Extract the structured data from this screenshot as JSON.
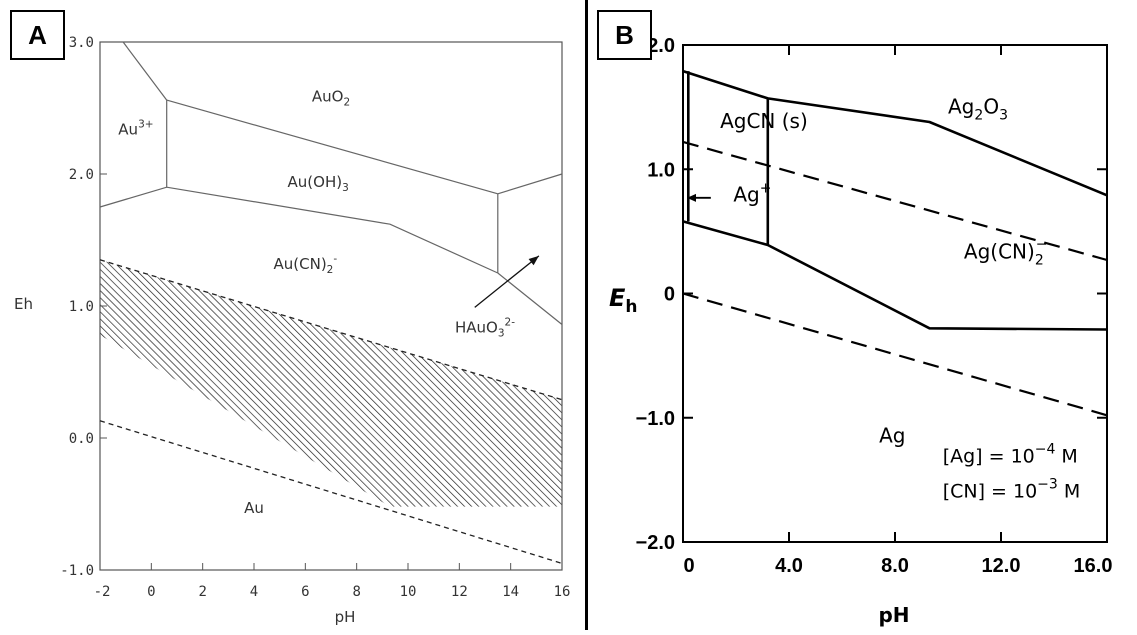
{
  "panels": {
    "a_label": "A",
    "b_label": "B"
  },
  "chart_data": [
    {
      "type": "line",
      "panel": "A",
      "xlabel": "pH",
      "ylabel": "Eh",
      "xlim": [
        -2,
        16
      ],
      "ylim": [
        -1.0,
        3.0
      ],
      "x_ticks": [
        "-2",
        "0",
        "2",
        "4",
        "6",
        "8",
        "10",
        "12",
        "14",
        "16"
      ],
      "y_ticks": [
        "-1.0",
        "0.0",
        "1.0",
        "2.0",
        "3.0"
      ],
      "grid": false,
      "regions": [
        {
          "name": "AuO2",
          "label_main": "AuO",
          "label_sub": "2"
        },
        {
          "name": "Au3+",
          "label_main": "Au",
          "label_sup": "3+"
        },
        {
          "name": "Au(OH)3",
          "label_main": "Au(OH)",
          "label_sub": "3"
        },
        {
          "name": "Au(CN)2-",
          "label_main": "Au(CN)",
          "label_sub": "2",
          "label_sup": "-"
        },
        {
          "name": "HAuO3 2-",
          "label_main": "HAuO",
          "label_sub": "3",
          "label_sup": "2-"
        },
        {
          "name": "Au",
          "label_main": "Au"
        }
      ],
      "boundaries": [
        {
          "style": "solid",
          "points": [
            [
              -1.1,
              3.0
            ],
            [
              0.6,
              2.56
            ]
          ]
        },
        {
          "style": "solid",
          "points": [
            [
              0.6,
              2.56
            ],
            [
              0.6,
              1.9
            ]
          ]
        },
        {
          "style": "solid",
          "points": [
            [
              0.6,
              2.56
            ],
            [
              13.5,
              1.85
            ]
          ]
        },
        {
          "style": "solid",
          "points": [
            [
              -2,
              1.75
            ],
            [
              0.6,
              1.9
            ],
            [
              9.3,
              1.62
            ],
            [
              13.5,
              1.25
            ]
          ]
        },
        {
          "style": "solid",
          "points": [
            [
              13.5,
              1.85
            ],
            [
              13.5,
              1.25
            ]
          ]
        },
        {
          "style": "solid",
          "points": [
            [
              13.5,
              1.85
            ],
            [
              16,
              2.0
            ]
          ]
        },
        {
          "style": "solid",
          "points": [
            [
              13.5,
              1.25
            ],
            [
              16,
              0.86
            ]
          ]
        },
        {
          "style": "dashed",
          "points": [
            [
              -2,
              1.35
            ],
            [
              16,
              0.29
            ]
          ]
        },
        {
          "style": "dashed",
          "points": [
            [
              -2,
              0.13
            ],
            [
              16,
              -0.95
            ]
          ]
        }
      ],
      "hatched_region": [
        [
          -2,
          1.35
        ],
        [
          16,
          0.29
        ],
        [
          16,
          -0.52
        ],
        [
          9.3,
          -0.52
        ],
        [
          -2,
          0.78
        ]
      ],
      "annotation_arrow": {
        "from": [
          12.6,
          0.99
        ],
        "to": [
          15.1,
          1.38
        ]
      }
    },
    {
      "type": "line",
      "panel": "B",
      "xlabel": "pH",
      "ylabel_main": "E",
      "ylabel_sub": "h",
      "xlim": [
        0,
        16.0
      ],
      "ylim": [
        -2.0,
        2.0
      ],
      "x_ticks": [
        "0",
        "4.0",
        "8.0",
        "12.0",
        "16.0"
      ],
      "y_ticks": [
        "−2.0",
        "−1.0",
        "0",
        "1.0",
        "2.0"
      ],
      "grid": false,
      "regions": [
        {
          "name": "Ag2O3",
          "label_main": "Ag",
          "label_sub": "2",
          "label_tail": "O",
          "label_sub2": "3"
        },
        {
          "name": "AgCN(s)",
          "label_main": "AgCN (s)"
        },
        {
          "name": "Ag+",
          "label_main": "Ag",
          "label_sup": "+"
        },
        {
          "name": "Ag(CN)2-",
          "label_main": "Ag(CN)",
          "label_sub": "2",
          "label_sup": "−"
        },
        {
          "name": "Ag",
          "label_main": "Ag"
        }
      ],
      "boundaries": [
        {
          "style": "solid",
          "points": [
            [
              0,
              1.79
            ],
            [
              3.2,
              1.57
            ],
            [
              9.3,
              1.38
            ],
            [
              16.0,
              0.79
            ]
          ]
        },
        {
          "style": "solid",
          "points": [
            [
              0,
              0.58
            ],
            [
              3.2,
              0.39
            ],
            [
              9.3,
              -0.28
            ],
            [
              16.0,
              -0.29
            ]
          ]
        },
        {
          "style": "solid",
          "points": [
            [
              0.2,
              1.79
            ],
            [
              0.2,
              0.58
            ]
          ]
        },
        {
          "style": "solid",
          "points": [
            [
              3.2,
              1.57
            ],
            [
              3.2,
              0.39
            ]
          ]
        },
        {
          "style": "dashed",
          "points": [
            [
              0,
              1.22
            ],
            [
              16.0,
              0.27
            ]
          ]
        },
        {
          "style": "dashed",
          "points": [
            [
              0,
              0.0
            ],
            [
              16.0,
              -0.98
            ]
          ]
        }
      ],
      "annotation_arrow": {
        "from": [
          1.05,
          0.77
        ],
        "to": [
          0.0,
          0.77
        ]
      },
      "conditions": [
        {
          "main": "[Ag] = 10",
          "sup": "−4",
          "tail": " M"
        },
        {
          "main": "[CN] = 10",
          "sup": "−3",
          "tail": " M"
        }
      ]
    }
  ]
}
